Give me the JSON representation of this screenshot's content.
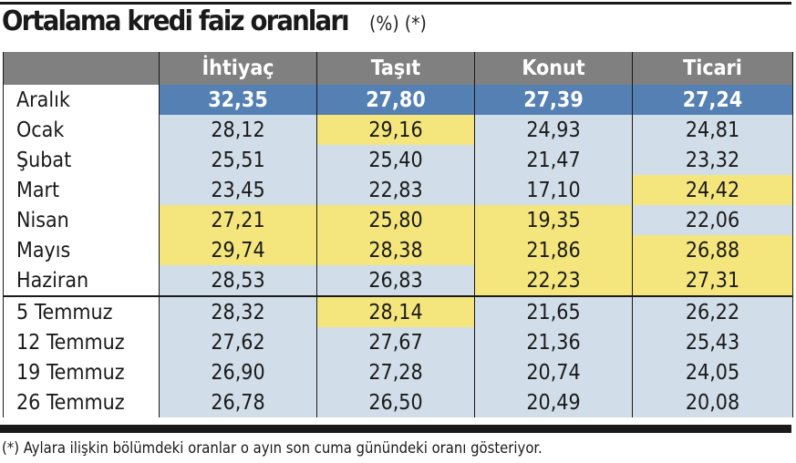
{
  "title": {
    "main": "Ortalama kredi faiz oranları",
    "suffix": "(%) (*)"
  },
  "table": {
    "columns": [
      "",
      "İhtiyaç",
      "Taşıt",
      "Konut",
      "Ticari"
    ],
    "rows": [
      {
        "label": "Aralık",
        "values": [
          "32,35",
          "27,80",
          "27,39",
          "27,24"
        ],
        "highlight": [
          false,
          false,
          false,
          false
        ]
      },
      {
        "label": "Ocak",
        "values": [
          "28,12",
          "29,16",
          "24,93",
          "24,81"
        ],
        "highlight": [
          false,
          true,
          false,
          false
        ]
      },
      {
        "label": "Şubat",
        "values": [
          "25,51",
          "25,40",
          "21,47",
          "23,32"
        ],
        "highlight": [
          false,
          false,
          false,
          false
        ]
      },
      {
        "label": "Mart",
        "values": [
          "23,45",
          "22,83",
          "17,10",
          "24,42"
        ],
        "highlight": [
          false,
          false,
          false,
          true
        ]
      },
      {
        "label": "Nisan",
        "values": [
          "27,21",
          "25,80",
          "19,35",
          "22,06"
        ],
        "highlight": [
          true,
          true,
          true,
          false
        ]
      },
      {
        "label": "Mayıs",
        "values": [
          "29,74",
          "28,38",
          "21,86",
          "26,88"
        ],
        "highlight": [
          true,
          true,
          true,
          true
        ]
      },
      {
        "label": "Haziran",
        "values": [
          "28,53",
          "26,83",
          "22,23",
          "27,31"
        ],
        "highlight": [
          false,
          false,
          true,
          true
        ]
      },
      {
        "label": "5 Temmuz",
        "values": [
          "28,32",
          "28,14",
          "21,65",
          "26,22"
        ],
        "highlight": [
          false,
          true,
          false,
          false
        ]
      },
      {
        "label": "12 Temmuz",
        "values": [
          "27,62",
          "27,67",
          "21,36",
          "25,43"
        ],
        "highlight": [
          false,
          false,
          false,
          false
        ]
      },
      {
        "label": "19 Temmuz",
        "values": [
          "26,90",
          "27,28",
          "20,74",
          "24,05"
        ],
        "highlight": [
          false,
          false,
          false,
          false
        ]
      },
      {
        "label": "26 Temmuz",
        "values": [
          "26,78",
          "26,50",
          "20,49",
          "20,08"
        ],
        "highlight": [
          false,
          false,
          false,
          false
        ]
      }
    ]
  },
  "colors": {
    "header_bg": "#808080",
    "first_row_bg": "#5580b4",
    "cell_bg": "#d1dde8",
    "highlight_bg": "#f4e57d",
    "rule": "#1a1a1a"
  },
  "footnote": "(*) Aylara ilişkin bölümdeki oranlar o ayın son cuma günündeki oranı gösteriyor."
}
